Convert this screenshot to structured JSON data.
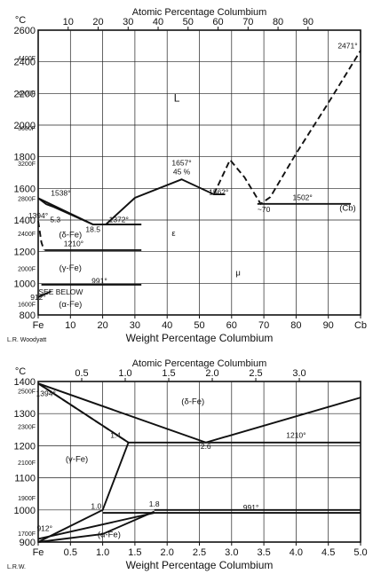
{
  "colors": {
    "ink": "#111111",
    "paper": "#ffffff"
  },
  "chart_data": [
    {
      "type": "line",
      "title": "",
      "xlabel": "Weight Percentage Columbium",
      "top_xlabel": "Atomic Percentage Columbium",
      "ylabel": "°C",
      "credit": "L.R. Woodyatt",
      "xlim": [
        0,
        100
      ],
      "ylim": [
        800,
        2600
      ],
      "x_ticks": [
        "Fe",
        "10",
        "20",
        "30",
        "40",
        "50",
        "60",
        "70",
        "80",
        "90",
        "Cb"
      ],
      "x_tick_values": [
        0,
        10,
        20,
        30,
        40,
        50,
        60,
        70,
        80,
        90,
        100
      ],
      "top_ticks": [
        "10",
        "20",
        "30",
        "40",
        "50",
        "60",
        "70",
        "80",
        "90"
      ],
      "top_tick_values": [
        10,
        20,
        30,
        40,
        50,
        60,
        70,
        80,
        90
      ],
      "y_ticks_c": [
        "800",
        "1000",
        "1200",
        "1400",
        "1600",
        "1800",
        "2000",
        "2200",
        "2400",
        "2600"
      ],
      "y_ticks_c_values": [
        800,
        1000,
        1200,
        1400,
        1600,
        1800,
        2000,
        2200,
        2400,
        2600
      ],
      "y_ticks_f": [
        "1600F",
        "2000F",
        "2400F",
        "2800F",
        "3200F",
        "3600F",
        "4000F",
        "4400F"
      ],
      "y_ticks_f_values": [
        871,
        1093,
        1316,
        1538,
        1760,
        1982,
        2204,
        2427
      ],
      "series": [
        {
          "style": "solid",
          "x": [
            0,
            17,
            32
          ],
          "y": [
            1538,
            1372,
            1372
          ]
        },
        {
          "style": "solid",
          "x": [
            0,
            2.5,
            4.5,
            17
          ],
          "y": [
            1538,
            1500,
            1485,
            1372
          ]
        },
        {
          "style": "solid",
          "x": [
            21,
            30,
            44.5,
            54.5,
            58
          ],
          "y": [
            1372,
            1540,
            1657,
            1562,
            1562
          ]
        },
        {
          "style": "dash",
          "x": [
            54.5,
            59.5,
            64,
            69,
            72,
            80,
            90,
            100
          ],
          "y": [
            1562,
            1780,
            1670,
            1502,
            1545,
            1820,
            2140,
            2471
          ]
        },
        {
          "style": "dash",
          "x": [
            0,
            1,
            1.8
          ],
          "y": [
            1394,
            1260,
            1210
          ]
        },
        {
          "style": "solid",
          "x": [
            2,
            32
          ],
          "y": [
            1210,
            1210
          ]
        },
        {
          "style": "solid",
          "x": [
            1,
            32
          ],
          "y": [
            991,
            991
          ]
        },
        {
          "style": "solid",
          "x": [
            68,
            97
          ],
          "y": [
            1502,
            1502
          ]
        },
        {
          "style": "solid",
          "x": [
            0,
            4
          ],
          "y": [
            912,
            950
          ]
        }
      ],
      "annotations": [
        {
          "text": "L",
          "x": 43,
          "y": 2150
        },
        {
          "text": "2471°",
          "x": 96,
          "y": 2485
        },
        {
          "text": "1657°",
          "x": 44.5,
          "y": 1745
        },
        {
          "text": "45 %",
          "x": 44.5,
          "y": 1690
        },
        {
          "text": "1538°",
          "x": 7,
          "y": 1555
        },
        {
          "text": "1562°",
          "x": 56,
          "y": 1560
        },
        {
          "text": "1502°",
          "x": 82,
          "y": 1525
        },
        {
          "text": "(Cb)",
          "x": 96,
          "y": 1460
        },
        {
          "text": "1394°",
          "x": 0,
          "y": 1412
        },
        {
          "text": "5.3",
          "x": 5.3,
          "y": 1385
        },
        {
          "text": "1372°",
          "x": 25,
          "y": 1385
        },
        {
          "text": "18.5",
          "x": 17,
          "y": 1325
        },
        {
          "text": "~70",
          "x": 70,
          "y": 1450
        },
        {
          "text": "(δ-Fe)",
          "x": 10,
          "y": 1290
        },
        {
          "text": "ε",
          "x": 42,
          "y": 1300
        },
        {
          "text": "1210°",
          "x": 11,
          "y": 1235
        },
        {
          "text": "(γ-Fe)",
          "x": 10,
          "y": 1080
        },
        {
          "text": "μ",
          "x": 62,
          "y": 1050
        },
        {
          "text": "991°",
          "x": 19,
          "y": 1000
        },
        {
          "text": "SEE BELOW",
          "x": 7,
          "y": 930
        },
        {
          "text": "912°",
          "x": 0,
          "y": 895
        },
        {
          "text": "(α-Fe)",
          "x": 10,
          "y": 850
        }
      ]
    },
    {
      "type": "line",
      "title": "",
      "xlabel": "Weight Percentage Columbium",
      "top_xlabel": "Atomic Percentage Columbium",
      "ylabel": "°C",
      "credit": "L.R.W.",
      "xlim": [
        0,
        5
      ],
      "ylim": [
        900,
        1400
      ],
      "x_ticks": [
        "Fe",
        "0.5",
        "1.0",
        "1.5",
        "2.0",
        "2.5",
        "3.0",
        "3.5",
        "4.0",
        "4.5",
        "5.0"
      ],
      "x_tick_values": [
        0,
        0.5,
        1,
        1.5,
        2,
        2.5,
        3,
        3.5,
        4,
        4.5,
        5
      ],
      "top_ticks": [
        "0.5",
        "1.0",
        "1.5",
        "2.0",
        "2.5",
        "3.0"
      ],
      "top_tick_values": [
        0.5,
        1,
        1.5,
        2,
        2.5,
        3
      ],
      "y_ticks_c": [
        "900",
        "1000",
        "1100",
        "1200",
        "1300",
        "1400"
      ],
      "y_ticks_c_values": [
        900,
        1000,
        1100,
        1200,
        1300,
        1400
      ],
      "y_ticks_f": [
        "1700F",
        "1900F",
        "2100F",
        "2300F",
        "2500F"
      ],
      "y_ticks_f_values": [
        927,
        1038,
        1149,
        1260,
        1371
      ],
      "series": [
        {
          "style": "solid",
          "x": [
            0,
            1.4,
            5
          ],
          "y": [
            1394,
            1210,
            1210
          ]
        },
        {
          "style": "solid",
          "x": [
            0,
            2.6,
            5
          ],
          "y": [
            1394,
            1210,
            1350
          ]
        },
        {
          "style": "dash",
          "x": [
            0,
            1.4
          ],
          "y": [
            1394,
            1210
          ]
        },
        {
          "style": "solid",
          "x": [
            0,
            0.4,
            1.0,
            1.4
          ],
          "y": [
            900,
            940,
            1000,
            1210
          ]
        },
        {
          "style": "solid",
          "x": [
            1.0,
            5
          ],
          "y": [
            991,
            991
          ]
        },
        {
          "style": "solid",
          "x": [
            1.8,
            5
          ],
          "y": [
            1000,
            1000
          ]
        },
        {
          "style": "solid",
          "x": [
            0,
            1.8
          ],
          "y": [
            910,
            991
          ]
        },
        {
          "style": "solid",
          "x": [
            0,
            1.0,
            1.8
          ],
          "y": [
            900,
            925,
            995
          ]
        }
      ],
      "annotations": [
        {
          "text": "1394°",
          "x": 0.12,
          "y": 1355
        },
        {
          "text": "(δ-Fe)",
          "x": 2.4,
          "y": 1330
        },
        {
          "text": "1.4",
          "x": 1.2,
          "y": 1225
        },
        {
          "text": "2.6",
          "x": 2.6,
          "y": 1190
        },
        {
          "text": "1210°",
          "x": 4,
          "y": 1225
        },
        {
          "text": "(γ-Fe)",
          "x": 0.6,
          "y": 1150
        },
        {
          "text": "1.0",
          "x": 0.9,
          "y": 1003
        },
        {
          "text": "1.8",
          "x": 1.8,
          "y": 1010
        },
        {
          "text": "991°",
          "x": 3.3,
          "y": 1000
        },
        {
          "text": "912°",
          "x": 0.1,
          "y": 935
        },
        {
          "text": "(α-Fe)",
          "x": 1.1,
          "y": 915
        }
      ]
    }
  ]
}
